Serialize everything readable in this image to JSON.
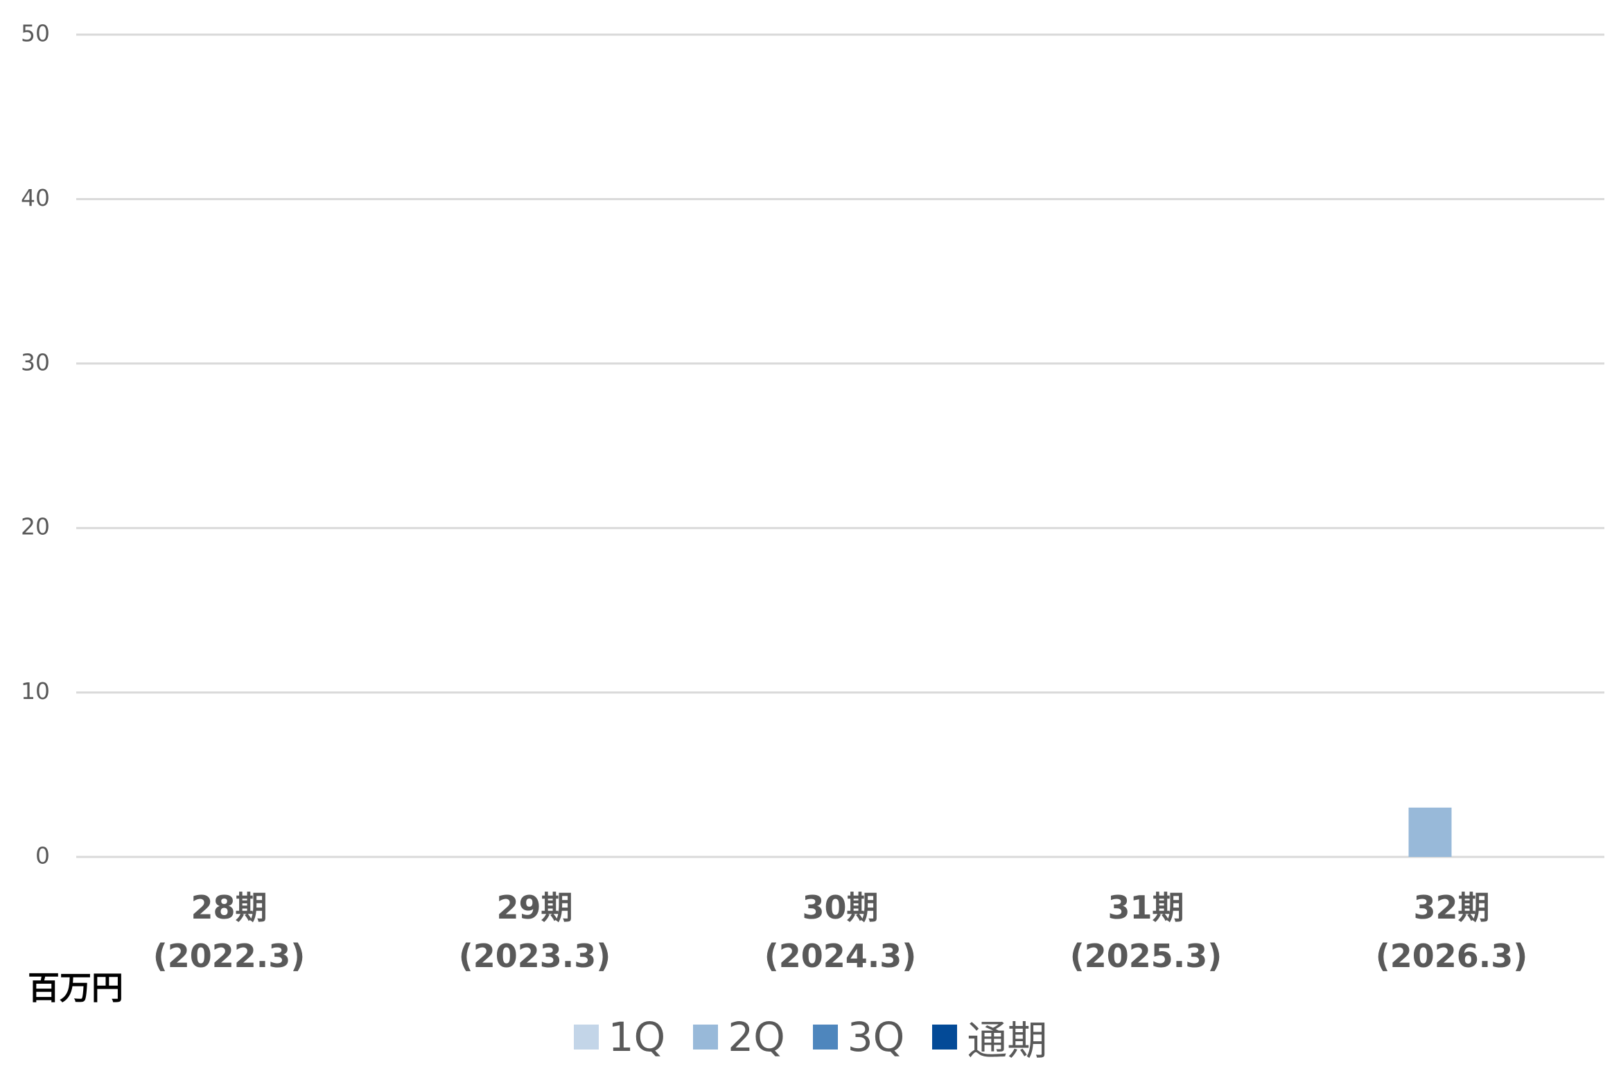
{
  "chart_data": {
    "type": "bar",
    "unit_label": "百万円",
    "categories": [
      "28期\n(2022.3)",
      "29期\n(2023.3)",
      "30期\n(2024.3)",
      "31期\n(2025.3)",
      "32期\n(2026.3)"
    ],
    "series": [
      {
        "name": "1Q",
        "color": "#c3d5e8",
        "values": [
          null,
          null,
          null,
          null,
          null
        ]
      },
      {
        "name": "2Q",
        "color": "#98b9d9",
        "values": [
          null,
          null,
          null,
          null,
          3
        ]
      },
      {
        "name": "3Q",
        "color": "#4e86bd",
        "values": [
          null,
          null,
          null,
          null,
          null
        ]
      },
      {
        "name": "通期",
        "color": "#034a97",
        "values": [
          null,
          null,
          null,
          null,
          null
        ]
      }
    ],
    "ylim": [
      0,
      50
    ],
    "yticks": [
      0,
      10,
      20,
      30,
      40,
      50
    ],
    "grid": true
  }
}
